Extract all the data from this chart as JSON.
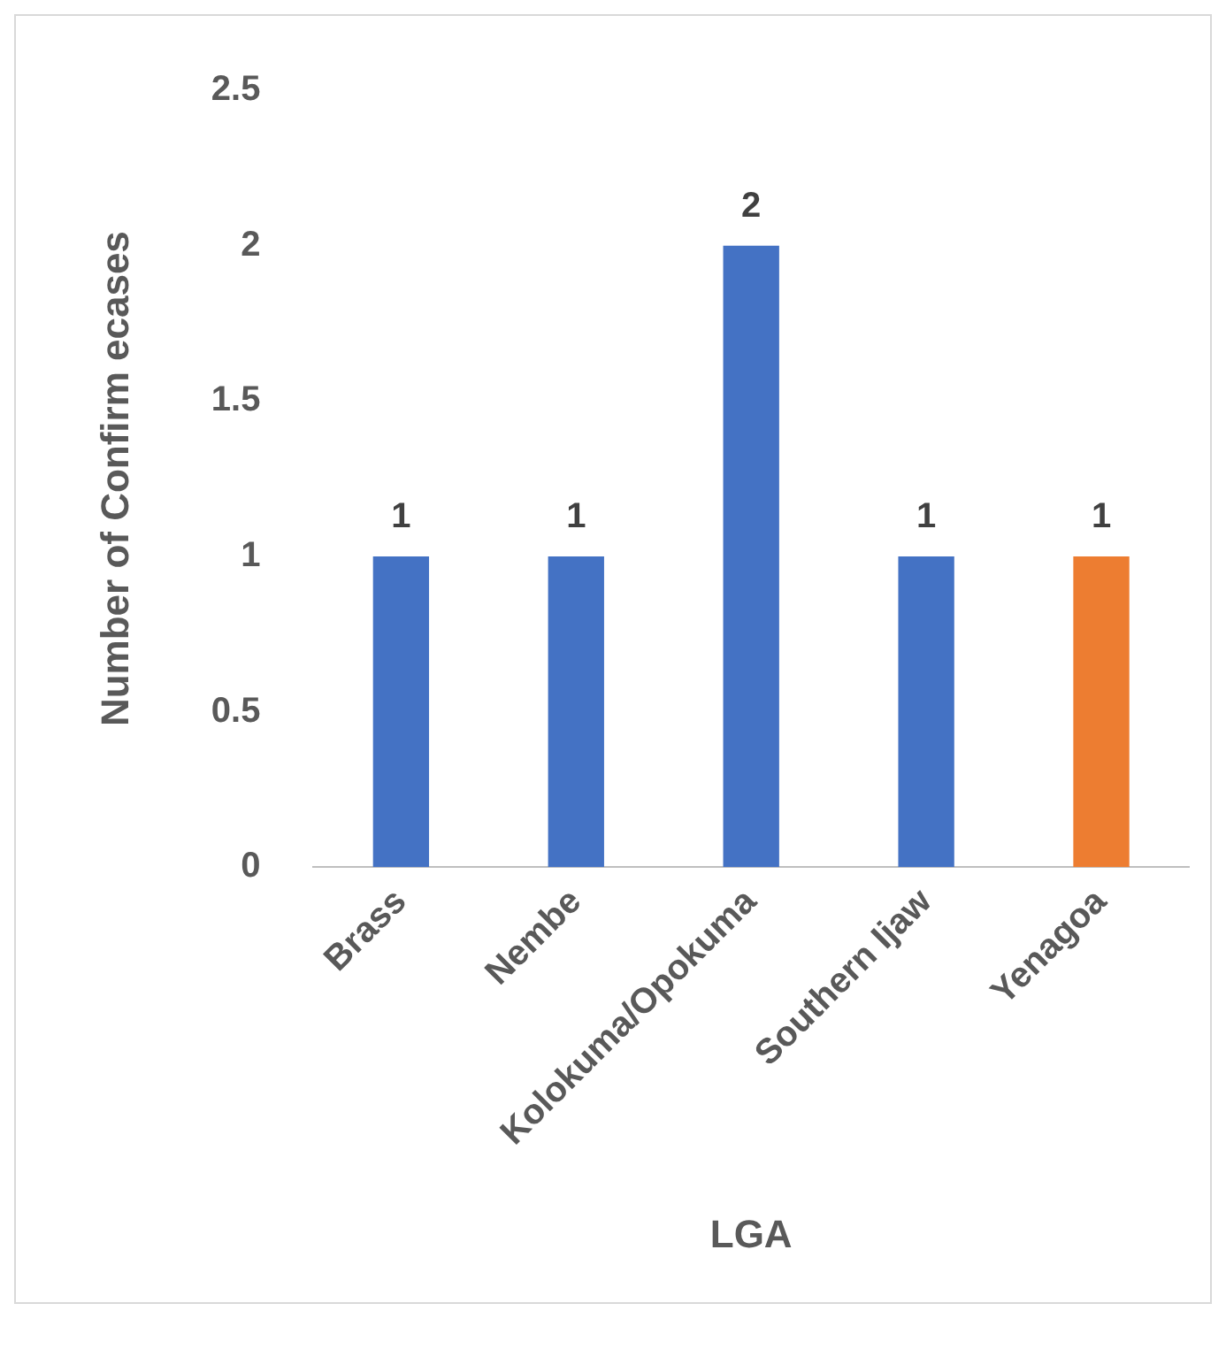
{
  "chart_data": {
    "type": "bar",
    "xlabel": "LGA",
    "ylabel": "Number of Confirm ecases",
    "categories": [
      "Brass",
      "Nembe",
      "Kolokuma/Opokuma",
      "Southern Ijaw",
      "Yenagoa"
    ],
    "values": [
      1,
      1,
      2,
      1,
      1
    ],
    "colors": [
      "#4472c4",
      "#4472c4",
      "#4472c4",
      "#4472c4",
      "#ed7d31"
    ],
    "ylim": [
      0,
      2.5
    ],
    "yticks": [
      0,
      0.5,
      1,
      1.5,
      2,
      2.5
    ],
    "grid": false,
    "legend": false,
    "data_labels": true
  }
}
